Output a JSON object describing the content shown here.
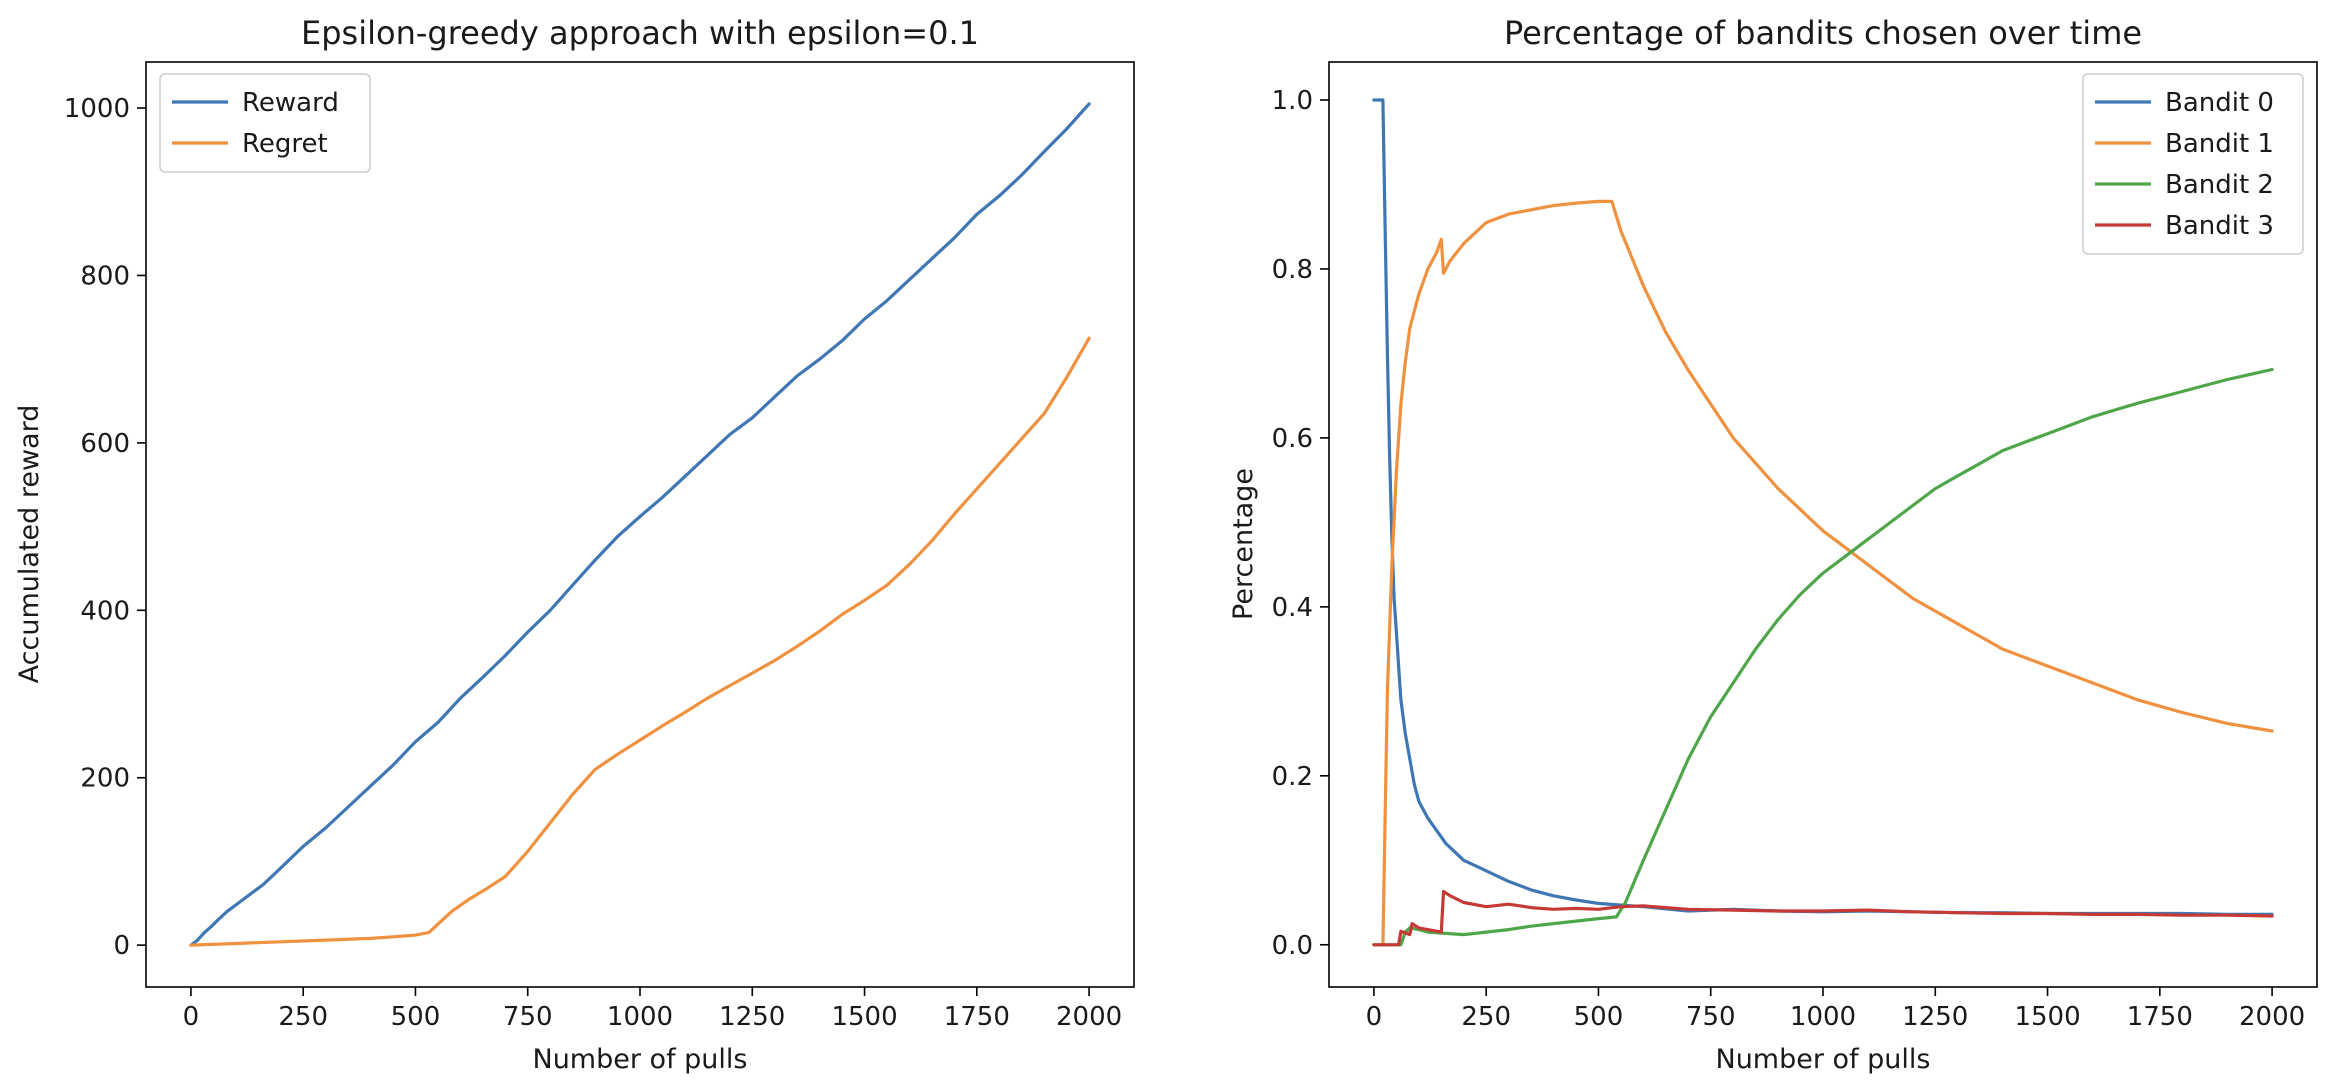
{
  "chart_data": [
    {
      "type": "line",
      "title": "Epsilon-greedy approach with epsilon=0.1",
      "xlabel": "Number of pulls",
      "ylabel": "Accumulated reward",
      "xlim": [
        -100,
        2100
      ],
      "ylim": [
        -50,
        1055
      ],
      "xticks": [
        0,
        250,
        500,
        750,
        1000,
        1250,
        1500,
        1750,
        2000
      ],
      "yticks": [
        0,
        200,
        400,
        600,
        800,
        1000
      ],
      "grid": false,
      "legend_position": "upper-left",
      "series": [
        {
          "name": "Reward",
          "color": "#3f77b5",
          "x": [
            0,
            15,
            30,
            45,
            60,
            80,
            100,
            130,
            160,
            200,
            250,
            300,
            350,
            400,
            450,
            500,
            550,
            600,
            650,
            700,
            750,
            800,
            850,
            900,
            950,
            1000,
            1050,
            1100,
            1150,
            1200,
            1250,
            1300,
            1350,
            1400,
            1450,
            1500,
            1550,
            1600,
            1650,
            1700,
            1750,
            1800,
            1850,
            1900,
            1950,
            2000
          ],
          "values": [
            0,
            6,
            15,
            22,
            30,
            40,
            48,
            60,
            72,
            92,
            118,
            140,
            165,
            190,
            215,
            243,
            266,
            295,
            320,
            346,
            374,
            400,
            430,
            460,
            488,
            512,
            535,
            560,
            585,
            610,
            630,
            655,
            680,
            700,
            722,
            748,
            770,
            795,
            820,
            845,
            873,
            895,
            920,
            948,
            975,
            1005
          ]
        },
        {
          "name": "Regret",
          "color": "#f0913f",
          "x": [
            0,
            100,
            200,
            300,
            400,
            450,
            500,
            530,
            550,
            580,
            620,
            660,
            700,
            750,
            800,
            850,
            900,
            950,
            1000,
            1050,
            1100,
            1150,
            1200,
            1250,
            1300,
            1350,
            1400,
            1450,
            1500,
            1550,
            1600,
            1650,
            1700,
            1750,
            1800,
            1850,
            1900,
            1950,
            2000
          ],
          "values": [
            0,
            2,
            4,
            6,
            8,
            10,
            12,
            15,
            25,
            40,
            55,
            68,
            82,
            112,
            146,
            180,
            210,
            228,
            245,
            262,
            278,
            295,
            310,
            325,
            340,
            357,
            375,
            395,
            412,
            430,
            455,
            483,
            515,
            545,
            575,
            605,
            635,
            678,
            725
          ]
        }
      ]
    },
    {
      "type": "line",
      "title": "Percentage of bandits chosen over time",
      "xlabel": "Number of pulls",
      "ylabel": "Percentage",
      "xlim": [
        -100,
        2100
      ],
      "ylim": [
        -0.05,
        1.045
      ],
      "xticks": [
        0,
        250,
        500,
        750,
        1000,
        1250,
        1500,
        1750,
        2000
      ],
      "yticks": [
        0.0,
        0.2,
        0.4,
        0.6,
        0.8,
        1.0
      ],
      "grid": false,
      "legend_position": "upper-right",
      "series": [
        {
          "name": "Bandit 0",
          "color": "#3f77b5",
          "x": [
            0,
            20,
            25,
            30,
            35,
            40,
            45,
            50,
            55,
            60,
            70,
            80,
            90,
            100,
            120,
            140,
            160,
            200,
            240,
            300,
            350,
            400,
            450,
            500,
            550,
            600,
            700,
            800,
            900,
            1000,
            1100,
            1200,
            1300,
            1400,
            1500,
            1600,
            1700,
            1800,
            1900,
            2000
          ],
          "values": [
            1.0,
            1.0,
            0.85,
            0.7,
            0.58,
            0.48,
            0.41,
            0.37,
            0.33,
            0.29,
            0.25,
            0.22,
            0.19,
            0.17,
            0.15,
            0.135,
            0.12,
            0.1,
            0.09,
            0.075,
            0.065,
            0.058,
            0.053,
            0.049,
            0.047,
            0.045,
            0.04,
            0.042,
            0.04,
            0.039,
            0.04,
            0.039,
            0.038,
            0.038,
            0.037,
            0.037,
            0.037,
            0.037,
            0.036,
            0.036
          ]
        },
        {
          "name": "Bandit 1",
          "color": "#f0913f",
          "x": [
            0,
            20,
            25,
            30,
            40,
            50,
            60,
            70,
            80,
            100,
            120,
            140,
            150,
            155,
            170,
            200,
            250,
            300,
            350,
            400,
            450,
            500,
            530,
            550,
            600,
            650,
            700,
            800,
            900,
            1000,
            1100,
            1200,
            1300,
            1400,
            1500,
            1600,
            1700,
            1800,
            1900,
            2000
          ],
          "values": [
            0.0,
            0.0,
            0.15,
            0.3,
            0.45,
            0.56,
            0.64,
            0.69,
            0.73,
            0.77,
            0.8,
            0.82,
            0.835,
            0.795,
            0.81,
            0.83,
            0.855,
            0.865,
            0.87,
            0.875,
            0.878,
            0.88,
            0.88,
            0.845,
            0.78,
            0.725,
            0.68,
            0.6,
            0.54,
            0.49,
            0.45,
            0.41,
            0.38,
            0.35,
            0.33,
            0.31,
            0.29,
            0.275,
            0.262,
            0.253
          ]
        },
        {
          "name": "Bandit 2",
          "color": "#4fa64a",
          "x": [
            0,
            60,
            70,
            80,
            100,
            120,
            200,
            250,
            300,
            350,
            400,
            450,
            500,
            540,
            560,
            600,
            650,
            700,
            750,
            800,
            850,
            900,
            950,
            1000,
            1050,
            1100,
            1150,
            1200,
            1250,
            1300,
            1350,
            1400,
            1450,
            1500,
            1550,
            1600,
            1650,
            1700,
            1750,
            1800,
            1850,
            1900,
            1950,
            2000
          ],
          "values": [
            0.0,
            0.0,
            0.015,
            0.02,
            0.018,
            0.015,
            0.012,
            0.015,
            0.018,
            0.022,
            0.025,
            0.028,
            0.031,
            0.033,
            0.05,
            0.1,
            0.16,
            0.22,
            0.27,
            0.31,
            0.35,
            0.385,
            0.415,
            0.44,
            0.46,
            0.48,
            0.5,
            0.52,
            0.54,
            0.555,
            0.57,
            0.585,
            0.595,
            0.605,
            0.615,
            0.625,
            0.633,
            0.641,
            0.648,
            0.655,
            0.662,
            0.669,
            0.675,
            0.681
          ]
        },
        {
          "name": "Bandit 3",
          "color": "#c63a36",
          "x": [
            0,
            55,
            60,
            80,
            85,
            100,
            150,
            155,
            170,
            200,
            250,
            300,
            350,
            400,
            450,
            500,
            550,
            600,
            700,
            800,
            900,
            1000,
            1100,
            1200,
            1300,
            1400,
            1500,
            1600,
            1700,
            1800,
            1900,
            2000
          ],
          "values": [
            0.0,
            0.0,
            0.016,
            0.012,
            0.025,
            0.02,
            0.015,
            0.063,
            0.058,
            0.05,
            0.045,
            0.048,
            0.044,
            0.042,
            0.043,
            0.042,
            0.045,
            0.046,
            0.042,
            0.041,
            0.04,
            0.04,
            0.041,
            0.039,
            0.038,
            0.037,
            0.037,
            0.036,
            0.036,
            0.035,
            0.035,
            0.034
          ]
        }
      ]
    }
  ]
}
